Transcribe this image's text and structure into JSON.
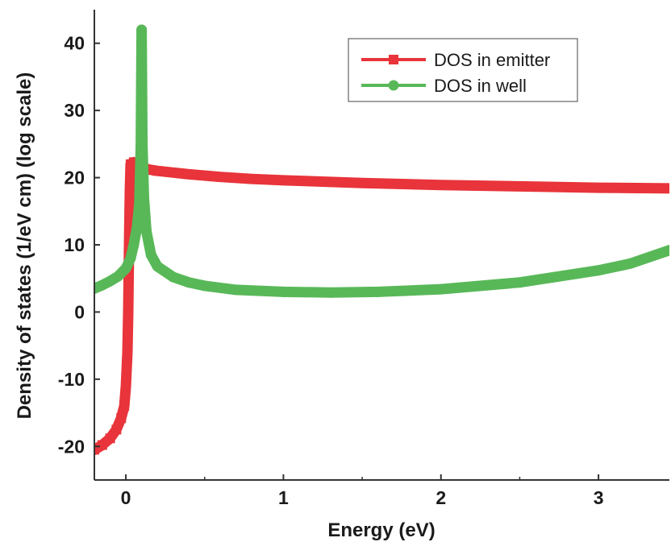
{
  "chart_data": {
    "type": "line",
    "title": "",
    "xlabel": "Energy (eV)",
    "ylabel": "Density of states (1/eV cm) (log scale)",
    "xlim": [
      -0.2,
      3.45
    ],
    "ylim": [
      -25,
      45
    ],
    "x_ticks": [
      0,
      1,
      2,
      3
    ],
    "y_ticks": [
      -20,
      -10,
      0,
      10,
      20,
      30,
      40
    ],
    "grid": false,
    "legend_position": "top-right",
    "series": [
      {
        "name": "DOS in emitter",
        "color": "#e8343a",
        "marker": "square",
        "points": [
          [
            -0.2,
            -20.5
          ],
          [
            -0.15,
            -19.8
          ],
          [
            -0.1,
            -18.8
          ],
          [
            -0.06,
            -17.5
          ],
          [
            -0.03,
            -15.8
          ],
          [
            -0.01,
            -14.0
          ],
          [
            0.0,
            -11.0
          ],
          [
            0.01,
            -6.0
          ],
          [
            0.015,
            0.0
          ],
          [
            0.02,
            10.0
          ],
          [
            0.025,
            18.0
          ],
          [
            0.03,
            22.0
          ],
          [
            0.05,
            22.3
          ],
          [
            0.08,
            21.6
          ],
          [
            0.12,
            21.3
          ],
          [
            0.2,
            21.0
          ],
          [
            0.4,
            20.5
          ],
          [
            0.6,
            20.1
          ],
          [
            0.8,
            19.8
          ],
          [
            1.0,
            19.6
          ],
          [
            1.5,
            19.2
          ],
          [
            2.0,
            18.9
          ],
          [
            2.5,
            18.7
          ],
          [
            3.0,
            18.5
          ],
          [
            3.45,
            18.4
          ]
        ]
      },
      {
        "name": "DOS in well",
        "color": "#58b858",
        "marker": "circle",
        "points": [
          [
            -0.2,
            3.5
          ],
          [
            -0.15,
            4.0
          ],
          [
            -0.1,
            4.6
          ],
          [
            -0.05,
            5.3
          ],
          [
            0.0,
            6.5
          ],
          [
            0.03,
            8.0
          ],
          [
            0.05,
            10.0
          ],
          [
            0.07,
            12.5
          ],
          [
            0.085,
            16.0
          ],
          [
            0.095,
            25.0
          ],
          [
            0.1,
            42.0
          ],
          [
            0.105,
            25.0
          ],
          [
            0.115,
            17.0
          ],
          [
            0.13,
            12.0
          ],
          [
            0.16,
            8.5
          ],
          [
            0.2,
            6.8
          ],
          [
            0.3,
            5.2
          ],
          [
            0.4,
            4.4
          ],
          [
            0.5,
            3.9
          ],
          [
            0.7,
            3.3
          ],
          [
            1.0,
            3.0
          ],
          [
            1.3,
            2.9
          ],
          [
            1.6,
            3.0
          ],
          [
            2.0,
            3.4
          ],
          [
            2.5,
            4.4
          ],
          [
            3.0,
            6.2
          ],
          [
            3.2,
            7.2
          ],
          [
            3.45,
            9.2
          ]
        ]
      }
    ]
  }
}
